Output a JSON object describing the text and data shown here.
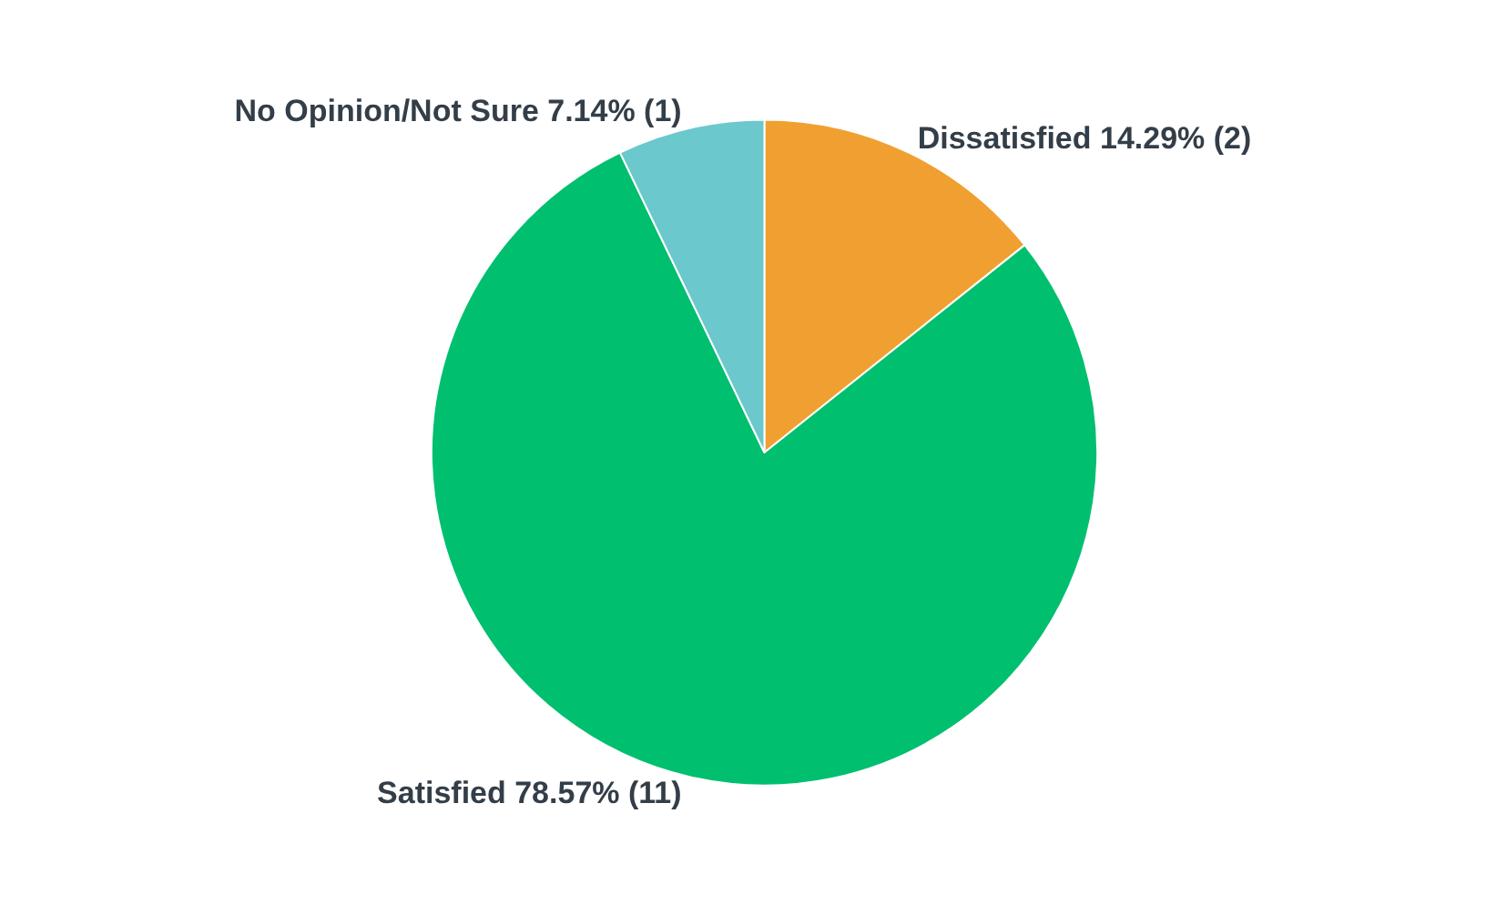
{
  "chart_data": {
    "type": "pie",
    "categories": [
      "Dissatisfied",
      "Satisfied",
      "No Opinion/Not Sure"
    ],
    "values": [
      14.29,
      78.57,
      7.14
    ],
    "value_labels": [
      "14.29% (2)",
      "78.57% (11)",
      "7.14% (1)"
    ],
    "colors": [
      "#f0a030",
      "#00bf6f",
      "#6bc8cd"
    ],
    "legend": false
  }
}
